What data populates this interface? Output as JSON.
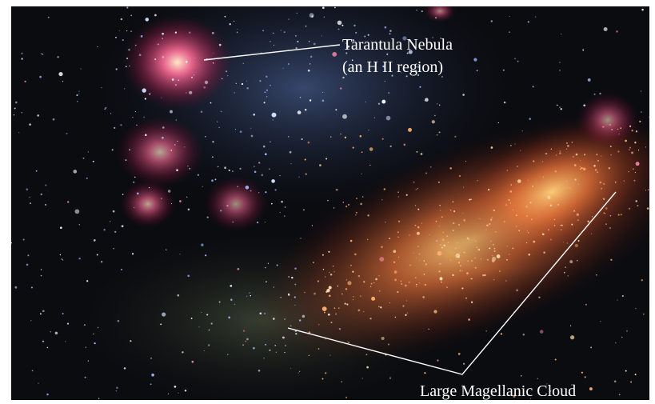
{
  "annotations": {
    "tarantula": {
      "name": "Tarantula Nebula",
      "note": "(an H II region)"
    },
    "cloud": {
      "name": "Large Magellanic Cloud"
    }
  }
}
